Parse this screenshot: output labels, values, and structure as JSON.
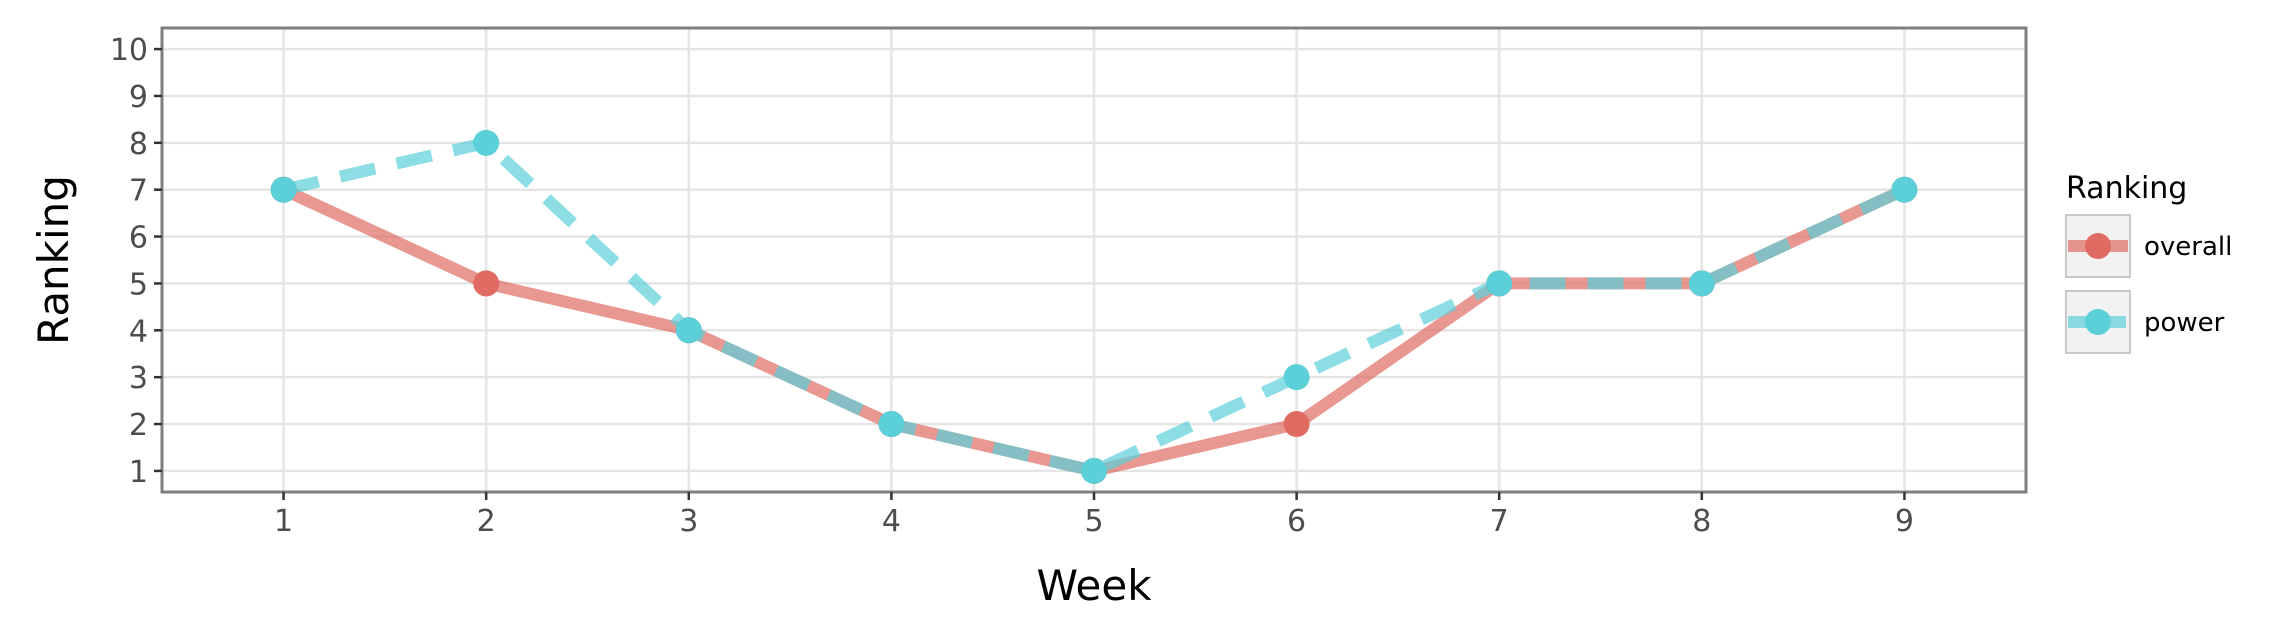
{
  "chart_data": {
    "type": "line",
    "xlabel": "Week",
    "ylabel": "Ranking",
    "x": [
      1,
      2,
      3,
      4,
      5,
      6,
      7,
      8,
      9
    ],
    "xlim": [
      0.4,
      9.6
    ],
    "ylim": [
      10.45,
      0.55
    ],
    "y_reversed": true,
    "x_ticks": [
      1,
      2,
      3,
      4,
      5,
      6,
      7,
      8,
      9
    ],
    "y_ticks": [
      1,
      2,
      3,
      4,
      5,
      6,
      7,
      8,
      9,
      10
    ],
    "grid": true,
    "legend": {
      "title": "Ranking",
      "position": "right"
    },
    "series": [
      {
        "name": "overall",
        "values": [
          7,
          5,
          4,
          2,
          1,
          2,
          5,
          5,
          7
        ],
        "color": "#e06b62",
        "line_style": "solid"
      },
      {
        "name": "power",
        "values": [
          7,
          8,
          4,
          2,
          1,
          3,
          5,
          5,
          7
        ],
        "color": "#5bd0d8",
        "line_style": "dashed"
      }
    ]
  }
}
